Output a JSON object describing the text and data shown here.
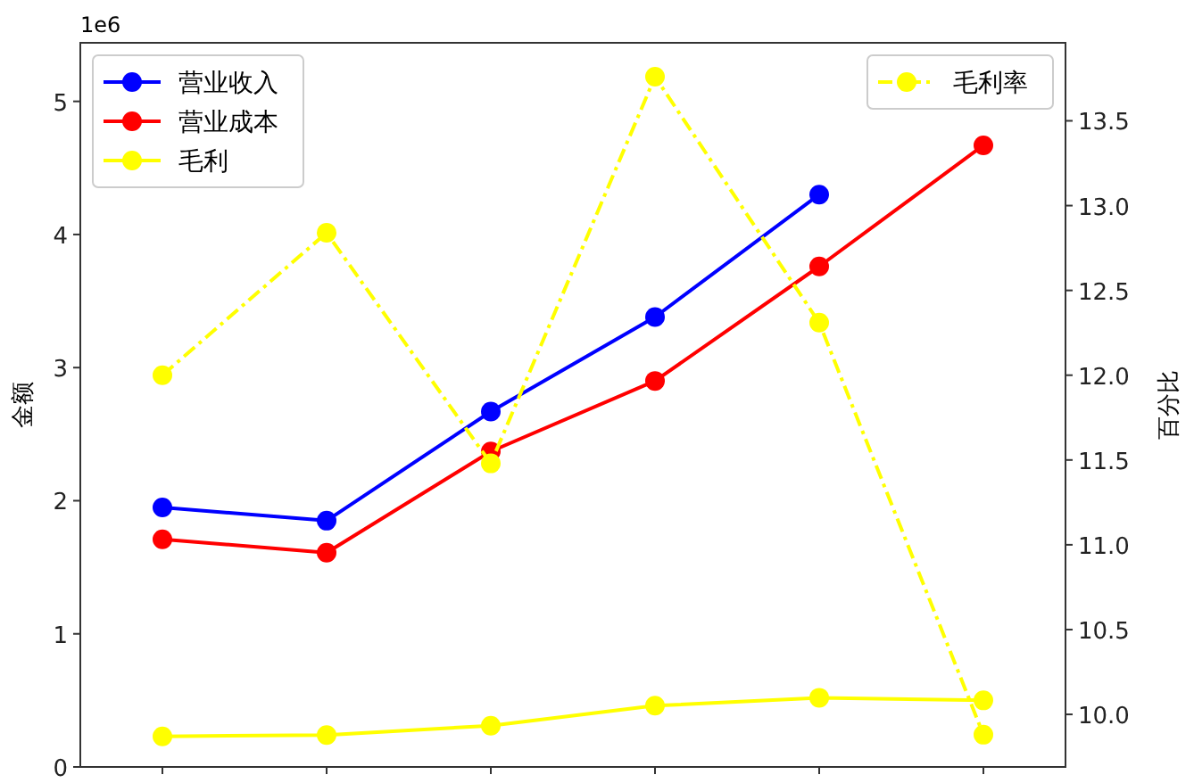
{
  "chart_data": {
    "type": "line",
    "ylabel": "金额",
    "y2label": "百分比",
    "categories": [
      null,
      null,
      null,
      null,
      null,
      null
    ],
    "ylim": [
      0,
      5.44
    ],
    "yticks": [
      0,
      1,
      2,
      3,
      4,
      5
    ],
    "y2lim": [
      9.69,
      13.96
    ],
    "y2ticks": [
      {
        "value": 10,
        "label": "10.0"
      },
      {
        "value": 10.5,
        "label": "10.5"
      },
      {
        "value": 11,
        "label": "11.0"
      },
      {
        "value": 11.5,
        "label": "11.5"
      },
      {
        "value": 12,
        "label": "12.0"
      },
      {
        "value": 12.5,
        "label": "12.5"
      },
      {
        "value": 13,
        "label": "13.0"
      },
      {
        "value": 13.5,
        "label": "13.5"
      }
    ],
    "annotations": [
      "1e6"
    ],
    "legend": "top left",
    "marker": "circle",
    "grid": false,
    "tick_labels": "y",
    "series": [
      {
        "name": "营业收入",
        "color": "#0000ff",
        "line_style": "solid",
        "values": [
          1.95,
          1.85,
          2.67,
          3.38,
          4.3,
          null
        ]
      },
      {
        "name": "营业成本",
        "color": "#ff0000",
        "line_style": "solid",
        "values": [
          1.71,
          1.61,
          2.37,
          2.9,
          3.76,
          4.67
        ]
      },
      {
        "name": "毛利",
        "color": "#ffff00",
        "line_style": "solid",
        "values": [
          0.23,
          0.24,
          0.31,
          0.46,
          0.52,
          0.5
        ]
      },
      {
        "name": "毛利率",
        "color": "#ffff00",
        "line_style": "dashdot",
        "axis": "y2",
        "values": [
          12.0,
          12.84,
          11.48,
          13.76,
          12.31,
          9.88
        ]
      }
    ]
  }
}
